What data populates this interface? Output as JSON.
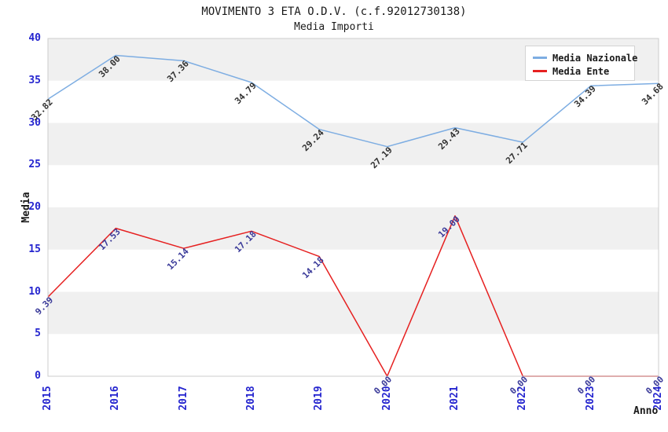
{
  "chart_data": {
    "type": "line",
    "title": "MOVIMENTO 3 ETA O.D.V. (c.f.92012730138)",
    "subtitle": "Media Importi",
    "xlabel": "Anno",
    "ylabel": "Media",
    "x": [
      "2015",
      "2016",
      "2017",
      "2018",
      "2019",
      "2020",
      "2021",
      "2022",
      "2023",
      "2024"
    ],
    "ylim": [
      0,
      40
    ],
    "yticks": [
      "0",
      "5",
      "10",
      "15",
      "20",
      "25",
      "30",
      "35",
      "40"
    ],
    "grid_bands": true,
    "legend_position": "top-right",
    "series": [
      {
        "name": "Media Nazionale",
        "color": "#7dade2",
        "label_color": "#303030",
        "values": [
          32.82,
          38.0,
          37.36,
          34.79,
          29.24,
          27.19,
          29.43,
          27.71,
          34.39,
          34.68
        ],
        "point_labels": [
          "32.82",
          "38.00",
          "37.36",
          "34.79",
          "29.24",
          "27.19",
          "29.43",
          "27.71",
          "34.39",
          "34.68"
        ]
      },
      {
        "name": "Media Ente",
        "color": "#e62020",
        "label_color": "#3a3a99",
        "values": [
          9.39,
          17.53,
          15.14,
          17.18,
          14.18,
          0.0,
          19.0,
          0.0,
          0.0,
          0.0
        ],
        "point_labels": [
          "9.39",
          "17.53",
          "15.14",
          "17.18",
          "14.18",
          "0.00",
          "19.00",
          "0.00",
          "0.00",
          "0.00"
        ]
      }
    ],
    "colors": {
      "tick_label": "#2525cf",
      "axis_label": "#1a1a1a",
      "band": "#f0f0f0",
      "plot_border": "#cccccc"
    }
  }
}
